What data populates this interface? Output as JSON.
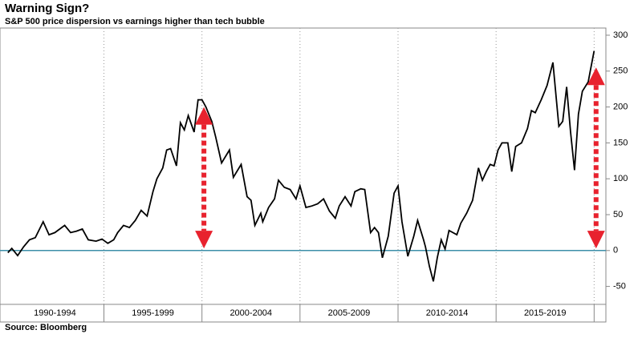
{
  "chart_data": {
    "type": "line",
    "title": "Warning Sign?",
    "subtitle": "S&P 500 price dispersion vs earnings higher than tech bubble",
    "source": "Source: Bloomberg",
    "xlim": [
      1989.7,
      2020.6
    ],
    "ylim": [
      -75,
      310
    ],
    "yticks": [
      -50,
      0,
      50,
      100,
      150,
      200,
      250,
      300
    ],
    "xticks": [
      1995,
      2000,
      2005,
      2010,
      2015,
      2020
    ],
    "periods": [
      {
        "start": 1990,
        "end": 1995,
        "label": "1990-1994"
      },
      {
        "start": 1995,
        "end": 2000,
        "label": "1995-1999"
      },
      {
        "start": 2000,
        "end": 2005,
        "label": "2000-2004"
      },
      {
        "start": 2005,
        "end": 2010,
        "label": "2005-2009"
      },
      {
        "start": 2010,
        "end": 2015,
        "label": "2010-2014"
      },
      {
        "start": 2015,
        "end": 2020,
        "label": "2015-2019"
      }
    ],
    "zero_line_color": "#3d8fa8",
    "grid": true,
    "series": [
      {
        "color": "#000000",
        "x": [
          1990.1,
          1990.3,
          1990.6,
          1990.9,
          1991.2,
          1991.5,
          1991.9,
          1992.2,
          1992.5,
          1993.0,
          1993.3,
          1993.6,
          1993.9,
          1994.2,
          1994.6,
          1994.9,
          1995.2,
          1995.5,
          1995.7,
          1996.0,
          1996.3,
          1996.6,
          1996.9,
          1997.2,
          1997.5,
          1997.7,
          1998.0,
          1998.2,
          1998.4,
          1998.7,
          1998.9,
          1999.1,
          1999.3,
          1999.6,
          1999.8,
          2000.0,
          2000.2,
          2000.5,
          2000.7,
          2001.0,
          2001.4,
          2001.6,
          2002.0,
          2002.3,
          2002.5,
          2002.7,
          2003.0,
          2003.1,
          2003.4,
          2003.7,
          2003.9,
          2004.2,
          2004.5,
          2004.8,
          2005.0,
          2005.3,
          2005.6,
          2005.9,
          2006.2,
          2006.5,
          2006.8,
          2007.0,
          2007.3,
          2007.6,
          2007.8,
          2008.1,
          2008.3,
          2008.6,
          2008.8,
          2009.0,
          2009.2,
          2009.5,
          2009.8,
          2010.0,
          2010.2,
          2010.5,
          2010.8,
          2011.0,
          2011.3,
          2011.4,
          2011.6,
          2011.8,
          2012.0,
          2012.2,
          2012.4,
          2012.6,
          2013.0,
          2013.2,
          2013.5,
          2013.8,
          2014.1,
          2014.3,
          2014.5,
          2014.7,
          2014.9,
          2015.1,
          2015.3,
          2015.6,
          2015.8,
          2016.0,
          2016.3,
          2016.6,
          2016.8,
          2017.0,
          2017.3,
          2017.6,
          2017.9,
          2018.2,
          2018.4,
          2018.6,
          2018.8,
          2019.0,
          2019.2,
          2019.4,
          2019.7,
          2019.8,
          2020.0
        ],
        "values": [
          -3,
          3,
          -7,
          5,
          15,
          18,
          40,
          22,
          25,
          35,
          25,
          27,
          30,
          15,
          13,
          16,
          10,
          15,
          25,
          35,
          32,
          42,
          56,
          48,
          82,
          100,
          115,
          140,
          142,
          118,
          178,
          168,
          188,
          165,
          210,
          210,
          200,
          180,
          158,
          122,
          140,
          102,
          120,
          75,
          70,
          35,
          52,
          40,
          60,
          72,
          98,
          88,
          85,
          72,
          90,
          60,
          62,
          65,
          72,
          55,
          45,
          62,
          75,
          62,
          82,
          86,
          85,
          25,
          32,
          25,
          -10,
          20,
          80,
          90,
          40,
          -8,
          20,
          42,
          15,
          5,
          -22,
          -43,
          -10,
          15,
          2,
          28,
          22,
          38,
          52,
          70,
          115,
          98,
          110,
          120,
          118,
          140,
          150,
          150,
          110,
          145,
          150,
          170,
          195,
          192,
          210,
          230,
          262,
          173,
          180,
          228,
          165,
          112,
          190,
          222,
          235,
          250,
          278
        ]
      }
    ],
    "annotations": [
      {
        "type": "double-arrow",
        "x": 2000.1,
        "from": 200,
        "to": 3,
        "color": "#e8222e"
      },
      {
        "type": "double-arrow",
        "x": 2020.1,
        "from": 255,
        "to": 3,
        "color": "#e8222e"
      }
    ]
  }
}
